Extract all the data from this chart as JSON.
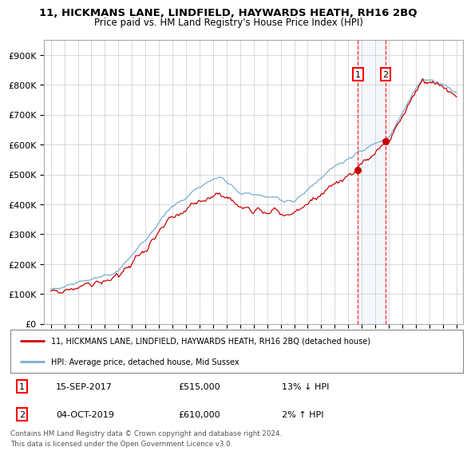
{
  "title1": "11, HICKMANS LANE, LINDFIELD, HAYWARDS HEATH, RH16 2BQ",
  "title2": "Price paid vs. HM Land Registry's House Price Index (HPI)",
  "ylim": [
    0,
    950000
  ],
  "yticks": [
    0,
    100000,
    200000,
    300000,
    400000,
    500000,
    600000,
    700000,
    800000,
    900000
  ],
  "ytick_labels": [
    "£0",
    "£100K",
    "£200K",
    "£300K",
    "£400K",
    "£500K",
    "£600K",
    "£700K",
    "£800K",
    "£900K"
  ],
  "hpi_color": "#7aadd4",
  "price_color": "#cc0000",
  "annotation1_year": 2017.71,
  "annotation1_value": 515000,
  "annotation1_date": "15-SEP-2017",
  "annotation1_price": "£515,000",
  "annotation1_hpi_text": "13% ↓ HPI",
  "annotation2_year": 2019.75,
  "annotation2_value": 610000,
  "annotation2_date": "04-OCT-2019",
  "annotation2_price": "£610,000",
  "annotation2_hpi_text": "2% ↑ HPI",
  "legend_line1": "11, HICKMANS LANE, LINDFIELD, HAYWARDS HEATH, RH16 2BQ (detached house)",
  "legend_line2": "HPI: Average price, detached house, Mid Sussex",
  "footnote": "Contains HM Land Registry data © Crown copyright and database right 2024.\nThis data is licensed under the Open Government Licence v3.0.",
  "background_color": "#ffffff",
  "grid_color": "#cccccc",
  "xlim_left": 1994.5,
  "xlim_right": 2025.5
}
